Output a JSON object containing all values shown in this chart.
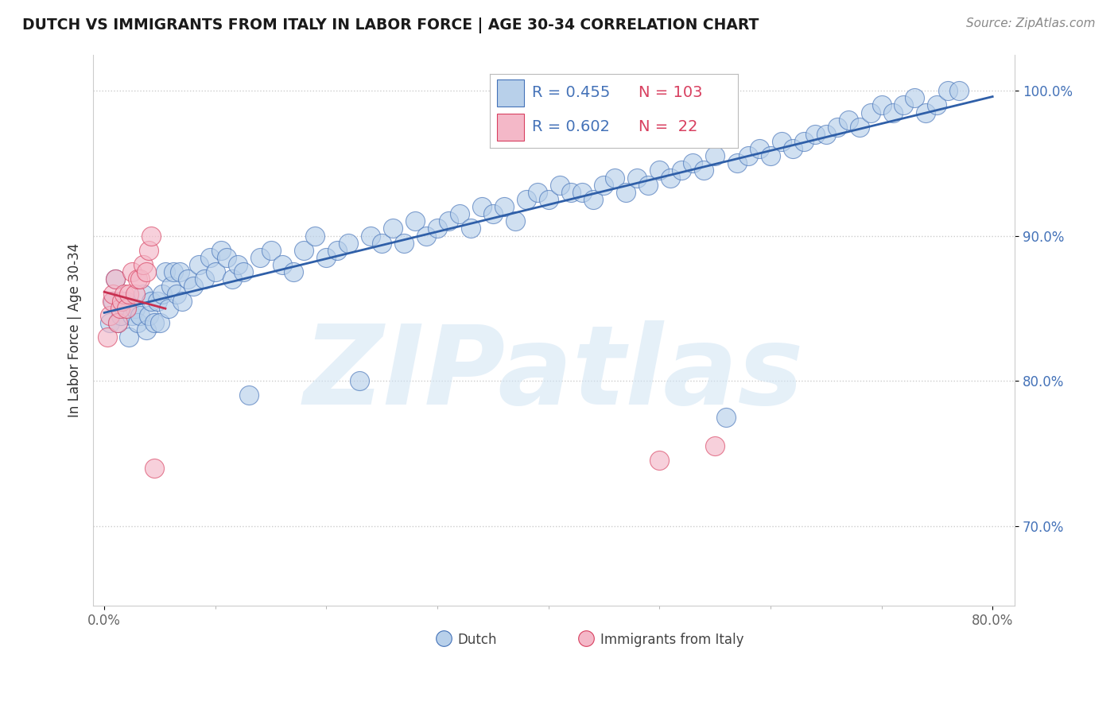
{
  "title": "DUTCH VS IMMIGRANTS FROM ITALY IN LABOR FORCE | AGE 30-34 CORRELATION CHART",
  "source": "Source: ZipAtlas.com",
  "ylabel": "In Labor Force | Age 30-34",
  "xlim": [
    -1,
    82
  ],
  "ylim": [
    64.5,
    102.5
  ],
  "xtick_vals": [
    0,
    80
  ],
  "xticklabels": [
    "0.0%",
    "80.0%"
  ],
  "ytick_vals": [
    70,
    80,
    90,
    100
  ],
  "yticklabels": [
    "70.0%",
    "80.0%",
    "90.0%",
    "100.0%"
  ],
  "legend_r_dutch": "0.455",
  "legend_n_dutch": "103",
  "legend_r_italy": "0.602",
  "legend_n_italy": "22",
  "dutch_face_color": "#b8d0ea",
  "dutch_edge_color": "#4472b8",
  "italy_face_color": "#f4b8c8",
  "italy_edge_color": "#d84060",
  "dutch_line_color": "#2f5fa8",
  "italy_line_color": "#c83050",
  "watermark_text": "ZIPatlas",
  "watermark_color": "#d0e4f4",
  "title_color": "#1a1a1a",
  "source_color": "#888888",
  "ylabel_color": "#333333",
  "ytick_color": "#4472b8",
  "xtick_color": "#666666",
  "grid_color": "#cccccc",
  "legend_text_color": "#4472b8",
  "dutch_x": [
    0.5,
    0.8,
    1.0,
    1.2,
    1.5,
    1.8,
    2.0,
    2.2,
    2.5,
    2.8,
    3.0,
    3.2,
    3.5,
    3.8,
    4.0,
    4.2,
    4.5,
    4.8,
    5.0,
    5.2,
    5.5,
    5.8,
    6.0,
    6.2,
    6.5,
    6.8,
    7.0,
    7.5,
    8.0,
    8.5,
    9.0,
    9.5,
    10.0,
    10.5,
    11.0,
    11.5,
    12.0,
    12.5,
    13.0,
    14.0,
    15.0,
    16.0,
    17.0,
    18.0,
    19.0,
    20.0,
    21.0,
    22.0,
    23.0,
    24.0,
    25.0,
    26.0,
    27.0,
    28.0,
    29.0,
    30.0,
    31.0,
    32.0,
    33.0,
    34.0,
    35.0,
    36.0,
    37.0,
    38.0,
    39.0,
    40.0,
    41.0,
    42.0,
    43.0,
    44.0,
    45.0,
    46.0,
    47.0,
    48.0,
    49.0,
    50.0,
    51.0,
    52.0,
    53.0,
    54.0,
    55.0,
    56.0,
    57.0,
    58.0,
    59.0,
    60.0,
    61.0,
    62.0,
    63.0,
    64.0,
    65.0,
    66.0,
    67.0,
    68.0,
    69.0,
    70.0,
    71.0,
    72.0,
    73.0,
    74.0,
    75.0,
    76.0,
    77.0
  ],
  "dutch_y": [
    84.0,
    85.5,
    87.0,
    84.0,
    84.5,
    85.0,
    85.5,
    83.0,
    84.5,
    85.0,
    84.0,
    84.5,
    86.0,
    83.5,
    84.5,
    85.5,
    84.0,
    85.5,
    84.0,
    86.0,
    87.5,
    85.0,
    86.5,
    87.5,
    86.0,
    87.5,
    85.5,
    87.0,
    86.5,
    88.0,
    87.0,
    88.5,
    87.5,
    89.0,
    88.5,
    87.0,
    88.0,
    87.5,
    79.0,
    88.5,
    89.0,
    88.0,
    87.5,
    89.0,
    90.0,
    88.5,
    89.0,
    89.5,
    80.0,
    90.0,
    89.5,
    90.5,
    89.5,
    91.0,
    90.0,
    90.5,
    91.0,
    91.5,
    90.5,
    92.0,
    91.5,
    92.0,
    91.0,
    92.5,
    93.0,
    92.5,
    93.5,
    93.0,
    93.0,
    92.5,
    93.5,
    94.0,
    93.0,
    94.0,
    93.5,
    94.5,
    94.0,
    94.5,
    95.0,
    94.5,
    95.5,
    77.5,
    95.0,
    95.5,
    96.0,
    95.5,
    96.5,
    96.0,
    96.5,
    97.0,
    97.0,
    97.5,
    98.0,
    97.5,
    98.5,
    99.0,
    98.5,
    99.0,
    99.5,
    98.5,
    99.0,
    100.0,
    100.0
  ],
  "italy_x": [
    0.3,
    0.5,
    0.7,
    0.8,
    1.0,
    1.2,
    1.4,
    1.6,
    1.8,
    2.0,
    2.2,
    2.5,
    2.8,
    3.0,
    3.2,
    3.5,
    3.8,
    4.0,
    4.2,
    4.5,
    50.0,
    55.0
  ],
  "italy_y": [
    83.0,
    84.5,
    85.5,
    86.0,
    87.0,
    84.0,
    85.0,
    85.5,
    86.0,
    85.0,
    86.0,
    87.5,
    86.0,
    87.0,
    87.0,
    88.0,
    87.5,
    89.0,
    90.0,
    74.0,
    74.5,
    75.5
  ]
}
